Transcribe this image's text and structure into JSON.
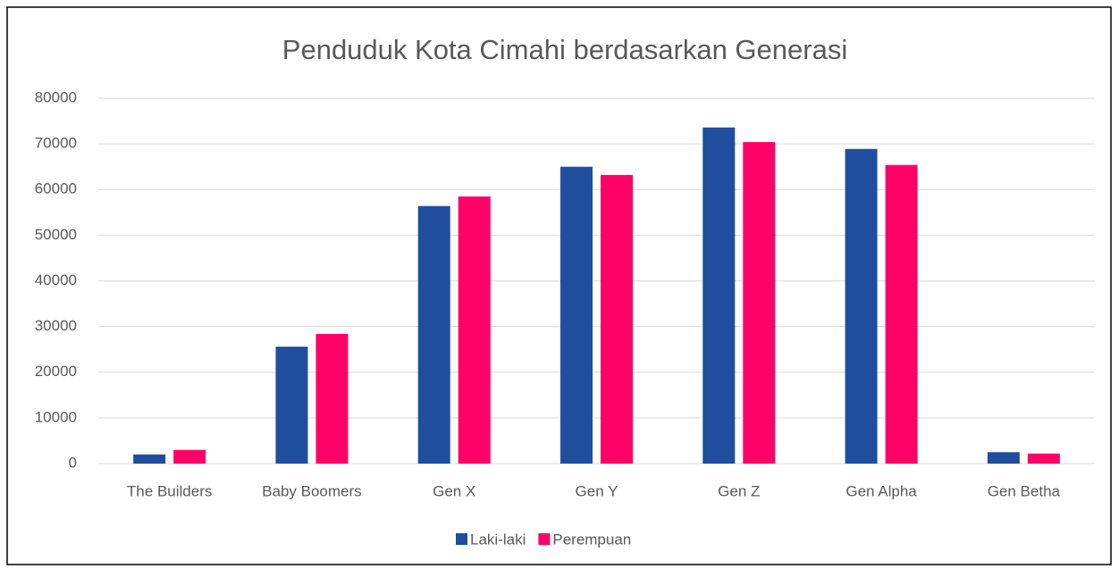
{
  "chart_data": {
    "type": "bar",
    "title": "Penduduk Kota Cimahi berdasarkan Generasi",
    "categories": [
      "The Builders",
      "Baby Boomers",
      "Gen X",
      "Gen Y",
      "Gen Z",
      "Gen Alpha",
      "Gen Betha"
    ],
    "series": [
      {
        "name": "Laki-laki",
        "color": "#1f4e9e",
        "values": [
          2000,
          25600,
          56400,
          65000,
          73600,
          68900,
          2500
        ]
      },
      {
        "name": "Perempuan",
        "color": "#ff0066",
        "values": [
          3000,
          28400,
          58500,
          63200,
          70400,
          65400,
          2200
        ]
      }
    ],
    "ylim": [
      0,
      80000
    ],
    "yticks": [
      0,
      10000,
      20000,
      30000,
      40000,
      50000,
      60000,
      70000,
      80000
    ],
    "grid": true,
    "legend": "bottom"
  }
}
